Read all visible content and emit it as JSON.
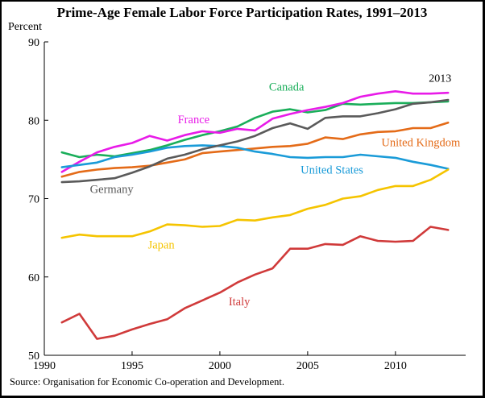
{
  "chart_data": {
    "type": "line",
    "title": "Prime-Age Female Labor Force Participation Rates, 1991–2013",
    "ylabel": "Percent",
    "xlabel": "",
    "xlim": [
      1990,
      2014
    ],
    "ylim": [
      50,
      90
    ],
    "xticks": [
      1990,
      1995,
      2000,
      2005,
      2010
    ],
    "yticks": [
      50,
      60,
      70,
      80,
      90
    ],
    "grid": false,
    "year_label": "2013",
    "source": "Source: Organisation for Economic Co-operation and Development.",
    "x": [
      1991,
      1992,
      1993,
      1994,
      1995,
      1996,
      1997,
      1998,
      1999,
      2000,
      2001,
      2002,
      2003,
      2004,
      2005,
      2006,
      2007,
      2008,
      2009,
      2010,
      2011,
      2012,
      2013
    ],
    "series": [
      {
        "name": "Canada",
        "color": "#1aae5a",
        "label_pos": [
          2002.8,
          83.8
        ],
        "values": [
          75.9,
          75.3,
          75.6,
          75.4,
          75.8,
          76.2,
          76.8,
          77.5,
          78.1,
          78.6,
          79.2,
          80.3,
          81.1,
          81.4,
          81.0,
          81.3,
          82.1,
          82.0,
          82.1,
          82.2,
          82.2,
          82.3,
          82.4
        ]
      },
      {
        "name": "France",
        "color": "#e81be8",
        "label_pos": [
          1997.6,
          79.6
        ],
        "values": [
          73.4,
          74.7,
          75.9,
          76.6,
          77.1,
          78.0,
          77.4,
          78.1,
          78.6,
          78.4,
          78.9,
          78.7,
          80.2,
          80.8,
          81.3,
          81.7,
          82.2,
          83.0,
          83.4,
          83.7,
          83.4,
          83.4,
          83.5
        ]
      },
      {
        "name": "United Kingdom",
        "color": "#e46b18",
        "label_pos": [
          2009.2,
          76.7
        ],
        "values": [
          72.8,
          73.4,
          73.7,
          73.9,
          74.0,
          74.2,
          74.6,
          75.0,
          75.8,
          76.0,
          76.2,
          76.4,
          76.6,
          76.7,
          77.0,
          77.8,
          77.6,
          78.2,
          78.5,
          78.6,
          79.0,
          79.0,
          79.7
        ]
      },
      {
        "name": "United States",
        "color": "#1a9bd8",
        "label_pos": [
          2004.6,
          73.2
        ],
        "values": [
          74.0,
          74.3,
          74.6,
          75.3,
          75.6,
          76.0,
          76.5,
          76.7,
          76.8,
          76.7,
          76.5,
          76.0,
          75.7,
          75.3,
          75.2,
          75.3,
          75.3,
          75.6,
          75.4,
          75.2,
          74.7,
          74.3,
          73.8
        ]
      },
      {
        "name": "Germany",
        "color": "#5a5a5a",
        "label_pos": [
          1992.6,
          70.7
        ],
        "values": [
          72.1,
          72.2,
          72.4,
          72.6,
          73.3,
          74.1,
          75.1,
          75.6,
          76.3,
          76.8,
          77.3,
          78.0,
          79.0,
          79.6,
          78.9,
          80.3,
          80.5,
          80.5,
          80.9,
          81.4,
          82.1,
          82.3,
          82.6
        ]
      },
      {
        "name": "Japan",
        "color": "#f5c400",
        "label_pos": [
          1995.9,
          63.6
        ],
        "values": [
          65.0,
          65.4,
          65.2,
          65.2,
          65.2,
          65.8,
          66.7,
          66.6,
          66.4,
          66.5,
          67.3,
          67.2,
          67.6,
          67.9,
          68.7,
          69.2,
          70.0,
          70.3,
          71.1,
          71.6,
          71.6,
          72.4,
          73.7
        ]
      },
      {
        "name": "Italy",
        "color": "#d03a3a",
        "label_pos": [
          2000.5,
          56.4
        ],
        "values": [
          54.2,
          55.3,
          52.1,
          52.5,
          53.3,
          54.0,
          54.6,
          56.0,
          57.0,
          58.0,
          59.3,
          60.3,
          61.1,
          63.6,
          63.6,
          64.2,
          64.1,
          65.2,
          64.6,
          64.5,
          64.6,
          66.4,
          66.0
        ]
      }
    ]
  }
}
